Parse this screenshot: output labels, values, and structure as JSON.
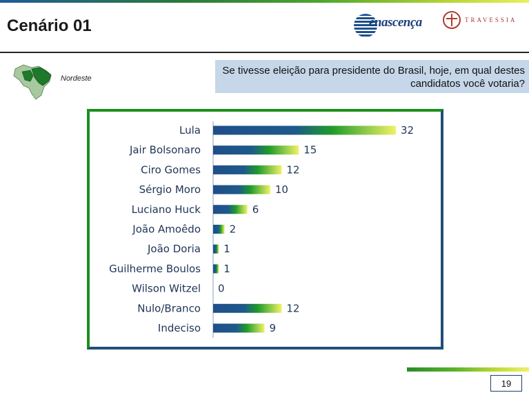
{
  "header": {
    "title": "Cenário 01",
    "logo_renascenca": "enascença",
    "logo_travessia": "TRAVESSIA"
  },
  "region": {
    "label": "Nordeste"
  },
  "question": {
    "text": "Se tivesse eleição para presidente do Brasil, hoje, em qual destes candidatos você votaria?"
  },
  "colors": {
    "bar_start": "#1f4e8a",
    "bar_mid": "#1e9a2a",
    "bar_end": "#f0f266",
    "frame_green": "#1e8f1e",
    "frame_blue": "#1f4e7a"
  },
  "chart_data": {
    "type": "bar",
    "orientation": "horizontal",
    "categories": [
      "Lula",
      "Jair Bolsonaro",
      "Ciro Gomes",
      "Sérgio Moro",
      "Luciano Huck",
      "João Amoêdo",
      "João Doria",
      "Guilherme Boulos",
      "Wilson Witzel",
      "Nulo/Branco",
      "Indeciso"
    ],
    "values": [
      32,
      15,
      12,
      10,
      6,
      2,
      1,
      1,
      0,
      12,
      9
    ],
    "title": "",
    "xlabel": "",
    "ylabel": "",
    "xlim": [
      0,
      32
    ],
    "grid": false,
    "legend": false
  },
  "footer": {
    "page_number": "19"
  }
}
